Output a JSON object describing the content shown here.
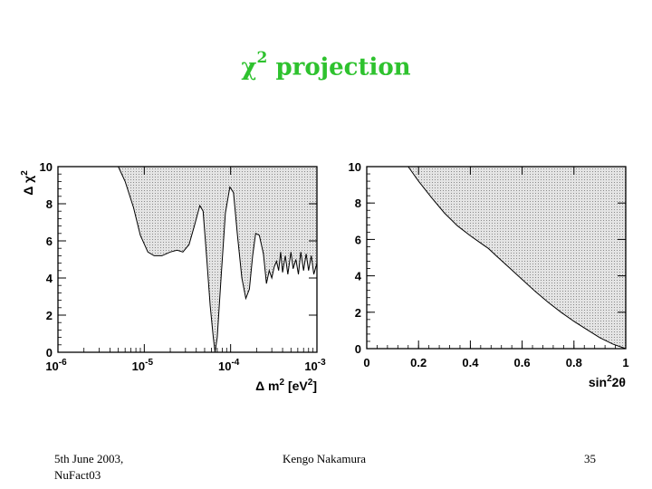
{
  "slide": {
    "title_symbol": "χ",
    "title_sup": "2",
    "title_text": "projection",
    "footer_date": "5th June 2003,",
    "footer_event": "NuFact03",
    "footer_author": "Kengo Nakamura",
    "page_number": "35"
  },
  "colors": {
    "title": "#2ec22e",
    "fill": "#dcdcdc",
    "line": "#000000"
  },
  "chart_data": [
    {
      "type": "area",
      "xscale": "log",
      "xlim": [
        1e-06,
        0.001
      ],
      "ylim": [
        0,
        10
      ],
      "xlabel_main": "Δ m",
      "xlabel_sup": "2",
      "xlabel_unit": "[eV",
      "xlabel_unit_sup": "2",
      "xlabel_close": "]",
      "ylabel_main": "Δ χ",
      "ylabel_sup": "2",
      "xticks": [
        {
          "v": 1e-06,
          "base": "10",
          "exp": "-6"
        },
        {
          "v": 1e-05,
          "base": "10",
          "exp": "-5"
        },
        {
          "v": 0.0001,
          "base": "10",
          "exp": "-4"
        },
        {
          "v": 0.001,
          "base": "10",
          "exp": "-3"
        }
      ],
      "yticks": [
        "0",
        "2",
        "4",
        "6",
        "8",
        "10"
      ],
      "curve": [
        [
          5e-06,
          10
        ],
        [
          6e-06,
          9.2
        ],
        [
          7.5e-06,
          7.8
        ],
        [
          9e-06,
          6.3
        ],
        [
          1.1e-05,
          5.4
        ],
        [
          1.3e-05,
          5.2
        ],
        [
          1.6e-05,
          5.2
        ],
        [
          2e-05,
          5.4
        ],
        [
          2.4e-05,
          5.5
        ],
        [
          2.8e-05,
          5.4
        ],
        [
          3.3e-05,
          5.8
        ],
        [
          3.8e-05,
          6.8
        ],
        [
          4.4e-05,
          7.9
        ],
        [
          4.8e-05,
          7.6
        ],
        [
          5.3e-05,
          5.0
        ],
        [
          5.8e-05,
          2.5
        ],
        [
          6.3e-05,
          0.8
        ],
        [
          6.6e-05,
          0
        ],
        [
          7e-05,
          0.8
        ],
        [
          7.8e-05,
          4.2
        ],
        [
          8.7e-05,
          7.5
        ],
        [
          9.8e-05,
          8.9
        ],
        [
          0.000108,
          8.6
        ],
        [
          0.00012,
          6.3
        ],
        [
          0.000135,
          4.0
        ],
        [
          0.00015,
          2.9
        ],
        [
          0.000165,
          3.4
        ],
        [
          0.00018,
          5.2
        ],
        [
          0.000195,
          6.4
        ],
        [
          0.000215,
          6.3
        ],
        [
          0.00024,
          5.3
        ],
        [
          0.00026,
          3.7
        ],
        [
          0.00028,
          4.4
        ],
        [
          0.0003,
          4.0
        ],
        [
          0.00032,
          4.6
        ],
        [
          0.00034,
          4.9
        ],
        [
          0.00036,
          4.4
        ],
        [
          0.00038,
          5.4
        ],
        [
          0.0004,
          4.3
        ],
        [
          0.00043,
          5.2
        ],
        [
          0.00046,
          4.2
        ],
        [
          0.0005,
          5.4
        ],
        [
          0.00053,
          4.5
        ],
        [
          0.00057,
          5.0
        ],
        [
          0.00061,
          4.2
        ],
        [
          0.00065,
          5.4
        ],
        [
          0.0007,
          4.4
        ],
        [
          0.00075,
          5.3
        ],
        [
          0.0008,
          4.4
        ],
        [
          0.00086,
          5.2
        ],
        [
          0.00092,
          4.2
        ],
        [
          0.001,
          4.8
        ]
      ]
    },
    {
      "type": "area",
      "xscale": "linear",
      "xlim": [
        0,
        1
      ],
      "ylim": [
        0,
        10
      ],
      "xlabel_main": "sin",
      "xlabel_sup": "2",
      "xlabel_tail": "2θ",
      "xticks": [
        "0",
        "0.2",
        "0.4",
        "0.6",
        "0.8",
        "1"
      ],
      "yticks": [
        "0",
        "2",
        "4",
        "6",
        "8",
        "10"
      ],
      "curve": [
        [
          0.16,
          10
        ],
        [
          0.2,
          9.2
        ],
        [
          0.25,
          8.3
        ],
        [
          0.3,
          7.45
        ],
        [
          0.35,
          6.75
        ],
        [
          0.4,
          6.2
        ],
        [
          0.44,
          5.8
        ],
        [
          0.47,
          5.5
        ],
        [
          0.5,
          5.1
        ],
        [
          0.55,
          4.45
        ],
        [
          0.6,
          3.8
        ],
        [
          0.65,
          3.15
        ],
        [
          0.7,
          2.55
        ],
        [
          0.75,
          2.0
        ],
        [
          0.8,
          1.5
        ],
        [
          0.85,
          1.05
        ],
        [
          0.9,
          0.6
        ],
        [
          0.95,
          0.25
        ],
        [
          1.0,
          0
        ]
      ]
    }
  ]
}
